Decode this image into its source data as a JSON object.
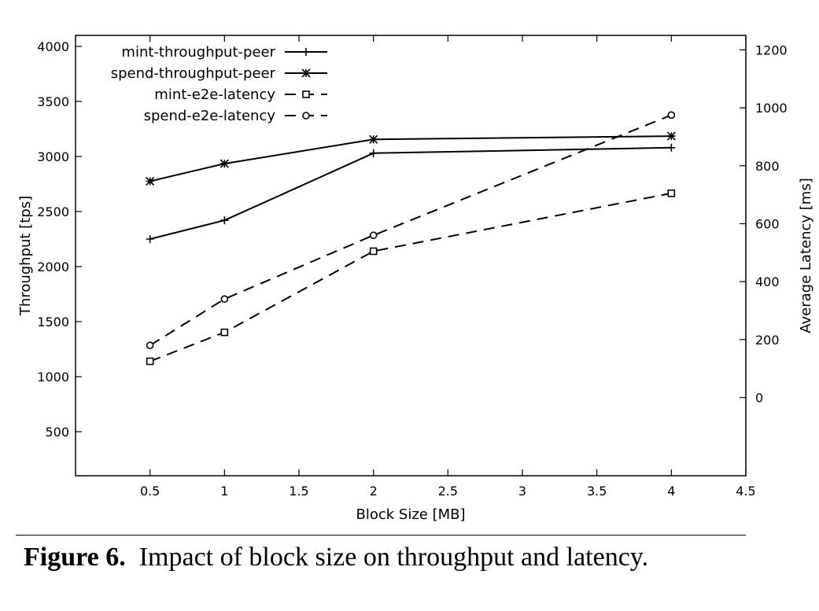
{
  "chart_data": {
    "type": "line",
    "xlabel": "Block Size [MB]",
    "ylabel": "Throughput [tps]",
    "y2label": "Average Latency [ms]",
    "xlim": [
      0,
      4.5
    ],
    "ylim": [
      100,
      4100
    ],
    "y2lim": [
      -270,
      1250
    ],
    "x_ticks": [
      "0.5",
      "1",
      "1.5",
      "2",
      "2.5",
      "3",
      "3.5",
      "4",
      "4.5"
    ],
    "y_ticks": [
      "500",
      "1000",
      "1500",
      "2000",
      "2500",
      "3000",
      "3500",
      "4000"
    ],
    "y2_ticks": [
      "0",
      "200",
      "400",
      "600",
      "800",
      "1000",
      "1200"
    ],
    "grid": false,
    "legend_position": "top-left",
    "series": [
      {
        "name": "mint-throughput-peer",
        "axis": "left",
        "style": "solid",
        "marker": "plus",
        "x": [
          0.5,
          1,
          2,
          4
        ],
        "values": [
          2250,
          2420,
          3030,
          3080
        ]
      },
      {
        "name": "spend-throughput-peer",
        "axis": "left",
        "style": "solid",
        "marker": "star",
        "x": [
          0.5,
          1,
          2,
          4
        ],
        "values": [
          2775,
          2935,
          3155,
          3185
        ]
      },
      {
        "name": "mint-e2e-latency",
        "axis": "right",
        "style": "dashed",
        "marker": "square",
        "x": [
          0.5,
          1,
          2,
          4
        ],
        "values": [
          125,
          225,
          505,
          705
        ]
      },
      {
        "name": "spend-e2e-latency",
        "axis": "right",
        "style": "dashed",
        "marker": "circle",
        "x": [
          0.5,
          1,
          2,
          4
        ],
        "values": [
          180,
          340,
          560,
          975
        ]
      }
    ]
  },
  "caption": {
    "label": "Figure 6.",
    "text": "Impact of block size on throughput and latency."
  }
}
